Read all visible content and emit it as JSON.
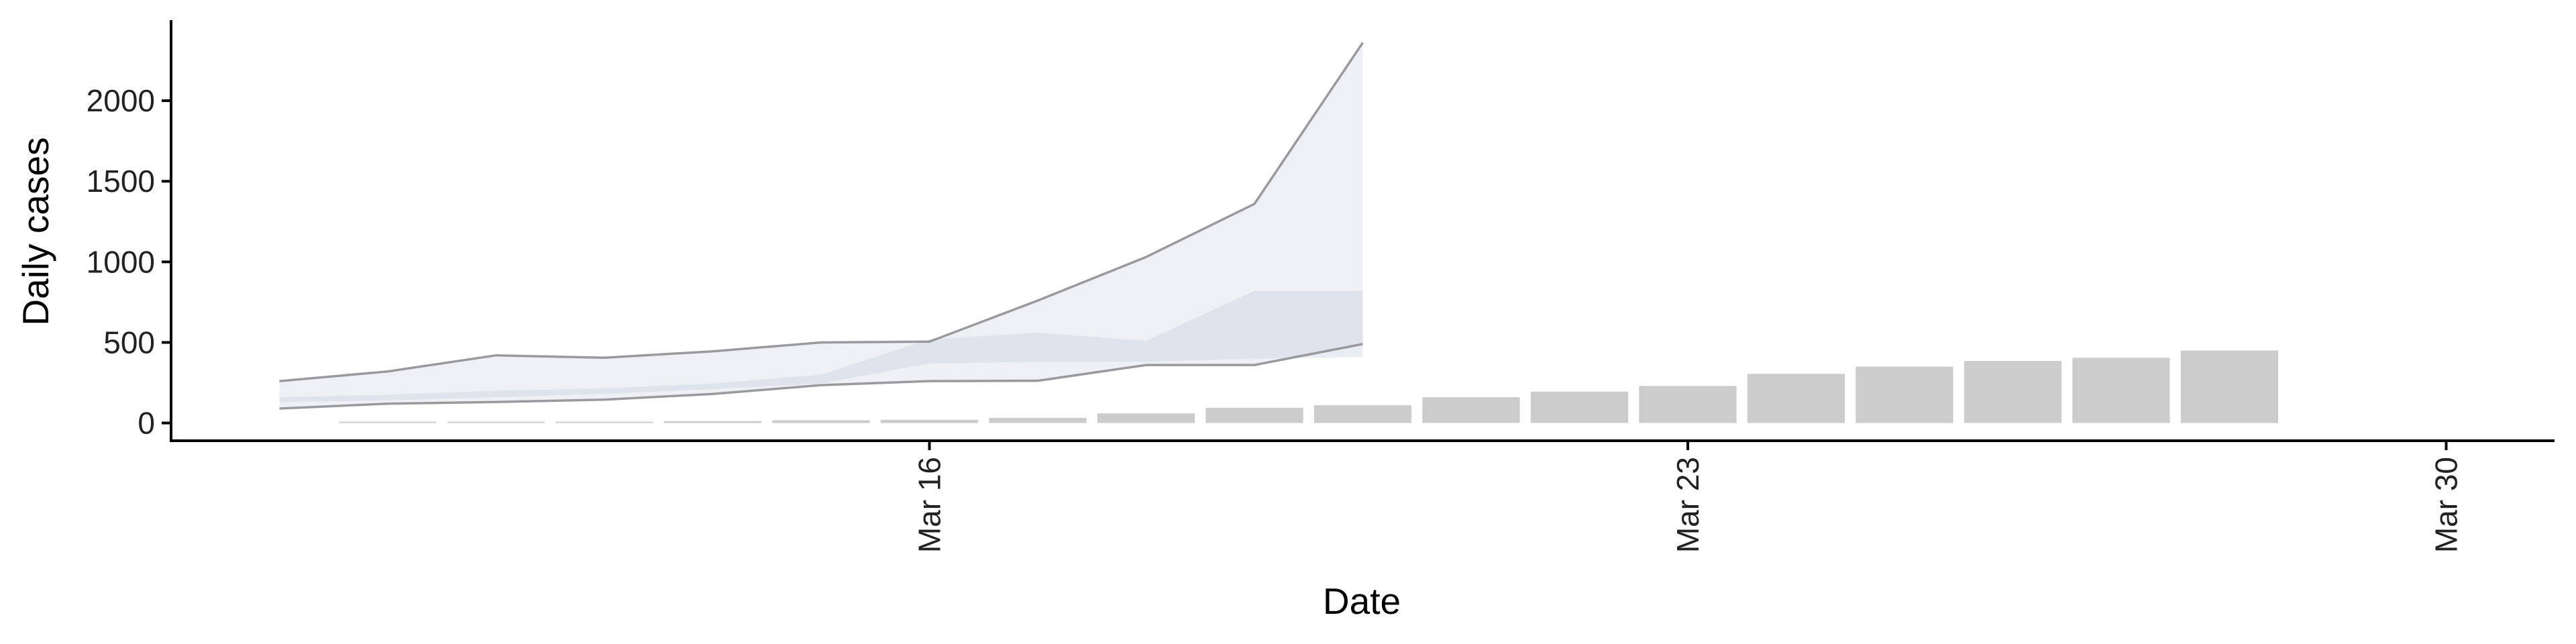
{
  "chart_data": {
    "type": "bar",
    "xlabel": "Date",
    "ylabel": "Daily cases",
    "x_ticks": [
      {
        "date": "2020-03-16",
        "label": "Mar 16"
      },
      {
        "date": "2020-03-23",
        "label": "Mar 23"
      },
      {
        "date": "2020-03-30",
        "label": "Mar 30"
      }
    ],
    "y_ticks": [
      0,
      500,
      1000,
      1500,
      2000
    ],
    "xlim": [
      "2020-03-09",
      "2020-03-31"
    ],
    "ylim": [
      -110,
      2500
    ],
    "bar_color": "#cccccc",
    "bars": [
      {
        "date": "2020-03-11",
        "value": 3
      },
      {
        "date": "2020-03-12",
        "value": 5
      },
      {
        "date": "2020-03-13",
        "value": 8
      },
      {
        "date": "2020-03-14",
        "value": 12
      },
      {
        "date": "2020-03-15",
        "value": 17
      },
      {
        "date": "2020-03-16",
        "value": 20
      },
      {
        "date": "2020-03-17",
        "value": 32
      },
      {
        "date": "2020-03-18",
        "value": 60
      },
      {
        "date": "2020-03-19",
        "value": 95
      },
      {
        "date": "2020-03-20",
        "value": 110
      },
      {
        "date": "2020-03-21",
        "value": 160
      },
      {
        "date": "2020-03-22",
        "value": 195
      },
      {
        "date": "2020-03-23",
        "value": 230
      },
      {
        "date": "2020-03-24",
        "value": 305
      },
      {
        "date": "2020-03-25",
        "value": 350
      },
      {
        "date": "2020-03-26",
        "value": 385
      },
      {
        "date": "2020-03-27",
        "value": 405
      },
      {
        "date": "2020-03-28",
        "value": 450
      }
    ],
    "band_color": "#c4cade",
    "outer_band_color": "#eeeeee",
    "bands": [
      {
        "date": "2020-03-10",
        "lower": 90,
        "upper": 260
      },
      {
        "date": "2020-03-11",
        "lower": 120,
        "upper": 320
      },
      {
        "date": "2020-03-12",
        "lower": 130,
        "upper": 420
      },
      {
        "date": "2020-03-13",
        "lower": 145,
        "upper": 405
      },
      {
        "date": "2020-03-14",
        "lower": 180,
        "upper": 445
      },
      {
        "date": "2020-03-15",
        "lower": 235,
        "upper": 500
      },
      {
        "date": "2020-03-16",
        "lower": 260,
        "upper": 505
      },
      {
        "date": "2020-03-17",
        "lower": 262,
        "upper": 760
      },
      {
        "date": "2020-03-18",
        "lower": 360,
        "upper": 1030
      },
      {
        "date": "2020-03-19",
        "lower": 360,
        "upper": 1360
      },
      {
        "date": "2020-03-20",
        "lower": 490,
        "upper": 2360
      }
    ],
    "inner_bands": [
      {
        "date": "2020-03-10",
        "lower": 130,
        "upper": 160
      },
      {
        "date": "2020-03-11",
        "lower": 140,
        "upper": 175
      },
      {
        "date": "2020-03-12",
        "lower": 160,
        "upper": 200
      },
      {
        "date": "2020-03-13",
        "lower": 180,
        "upper": 215
      },
      {
        "date": "2020-03-14",
        "lower": 210,
        "upper": 245
      },
      {
        "date": "2020-03-15",
        "lower": 245,
        "upper": 300
      },
      {
        "date": "2020-03-16",
        "lower": 370,
        "upper": 520
      },
      {
        "date": "2020-03-17",
        "lower": 380,
        "upper": 560
      },
      {
        "date": "2020-03-18",
        "lower": 380,
        "upper": 510
      },
      {
        "date": "2020-03-19",
        "lower": 400,
        "upper": 820
      },
      {
        "date": "2020-03-20",
        "lower": 410,
        "upper": 820
      }
    ],
    "grid": false,
    "legend": "none"
  }
}
